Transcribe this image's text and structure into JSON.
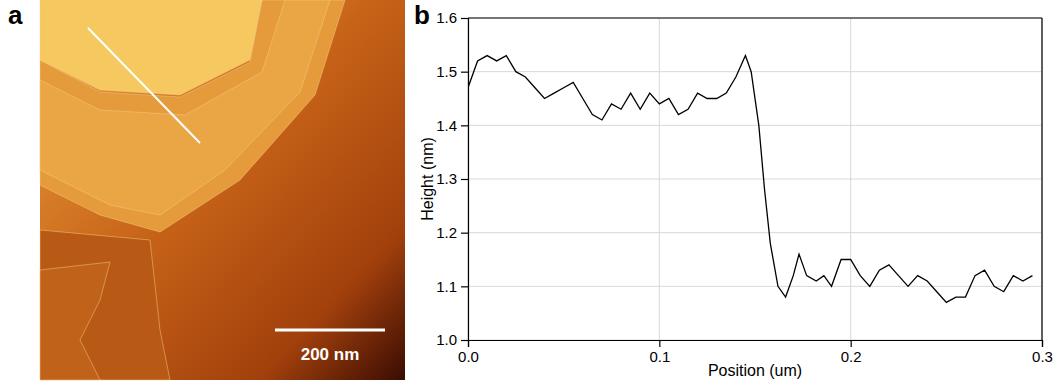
{
  "chart_data": [
    {
      "type": "image",
      "title": "a",
      "annotations": [
        "200 nm"
      ]
    },
    {
      "type": "line",
      "title": "b",
      "x_label": "Position (um)",
      "y_label": "Height (nm)",
      "color": "#000000",
      "grid": true,
      "xlim": [
        0,
        0.3
      ],
      "ylim": [
        1.0,
        1.6
      ],
      "xticks": [
        {
          "value": 0,
          "label": "0.0"
        },
        0.1,
        0.2,
        0.3
      ],
      "yticks": [
        {
          "value": 1.0,
          "label": "1.0"
        },
        1.1,
        1.2,
        1.3,
        1.4,
        1.5,
        1.6
      ],
      "x": [
        0.0,
        0.005,
        0.01,
        0.015,
        0.02,
        0.025,
        0.03,
        0.035,
        0.04,
        0.045,
        0.05,
        0.055,
        0.06,
        0.065,
        0.07,
        0.075,
        0.08,
        0.085,
        0.09,
        0.095,
        0.1,
        0.105,
        0.11,
        0.115,
        0.12,
        0.125,
        0.13,
        0.135,
        0.14,
        0.145,
        0.148,
        0.152,
        0.155,
        0.158,
        0.162,
        0.166,
        0.17,
        0.173,
        0.177,
        0.182,
        0.186,
        0.19,
        0.195,
        0.2,
        0.205,
        0.21,
        0.215,
        0.22,
        0.225,
        0.23,
        0.235,
        0.24,
        0.245,
        0.25,
        0.255,
        0.26,
        0.265,
        0.27,
        0.275,
        0.28,
        0.285,
        0.29,
        0.295
      ],
      "values": [
        1.47,
        1.52,
        1.53,
        1.52,
        1.53,
        1.5,
        1.49,
        1.47,
        1.45,
        1.46,
        1.47,
        1.48,
        1.45,
        1.42,
        1.41,
        1.44,
        1.43,
        1.46,
        1.43,
        1.46,
        1.44,
        1.45,
        1.42,
        1.43,
        1.46,
        1.45,
        1.45,
        1.46,
        1.49,
        1.53,
        1.5,
        1.4,
        1.28,
        1.18,
        1.1,
        1.08,
        1.12,
        1.16,
        1.12,
        1.11,
        1.12,
        1.1,
        1.15,
        1.15,
        1.12,
        1.1,
        1.13,
        1.14,
        1.12,
        1.1,
        1.12,
        1.11,
        1.09,
        1.07,
        1.08,
        1.08,
        1.12,
        1.13,
        1.1,
        1.09,
        1.12,
        1.11,
        1.12
      ]
    }
  ]
}
